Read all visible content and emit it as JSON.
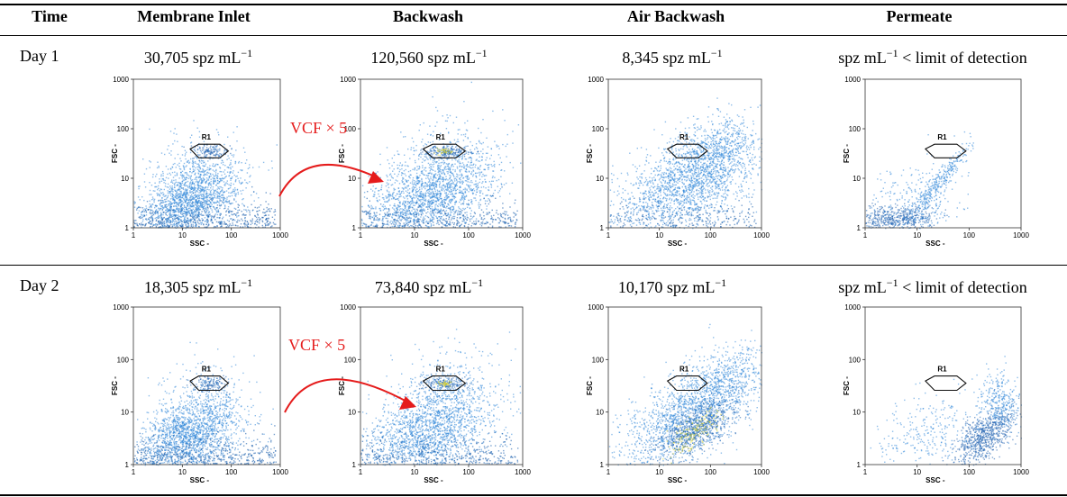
{
  "table": {
    "headers": [
      "Time",
      "Membrane Inlet",
      "Backwash",
      "Air Backwash",
      "Permeate"
    ],
    "rows": [
      {
        "time": "Day 1",
        "counts": [
          {
            "value": "30,705 spz mL",
            "exp": "−1",
            "suffix": ""
          },
          {
            "value": "120,560 spz mL",
            "exp": "−1",
            "suffix": ""
          },
          {
            "value": "8,345 spz mL",
            "exp": "−1",
            "suffix": ""
          },
          {
            "value": "spz mL",
            "exp": "−1",
            "suffix": " < limit of detection"
          }
        ],
        "annotation": "VCF × 5"
      },
      {
        "time": "Day 2",
        "counts": [
          {
            "value": "18,305 spz mL",
            "exp": "−1",
            "suffix": ""
          },
          {
            "value": "73,840 spz mL",
            "exp": "−1",
            "suffix": ""
          },
          {
            "value": "10,170 spz mL",
            "exp": "−1",
            "suffix": ""
          },
          {
            "value": "spz mL",
            "exp": "−1",
            "suffix": " < limit of detection"
          }
        ],
        "annotation": "VCF × 5"
      }
    ]
  },
  "plot": {
    "xlabel": "SSC -",
    "ylabel": "FSC -",
    "ticks": [
      "1",
      "10",
      "100",
      "1000"
    ],
    "gate_label": "R1"
  },
  "colors": {
    "arrow": "#e51c1c",
    "dots": "#2f86d8",
    "dense": "#1b5fae",
    "hot": "#d9d22a"
  }
}
